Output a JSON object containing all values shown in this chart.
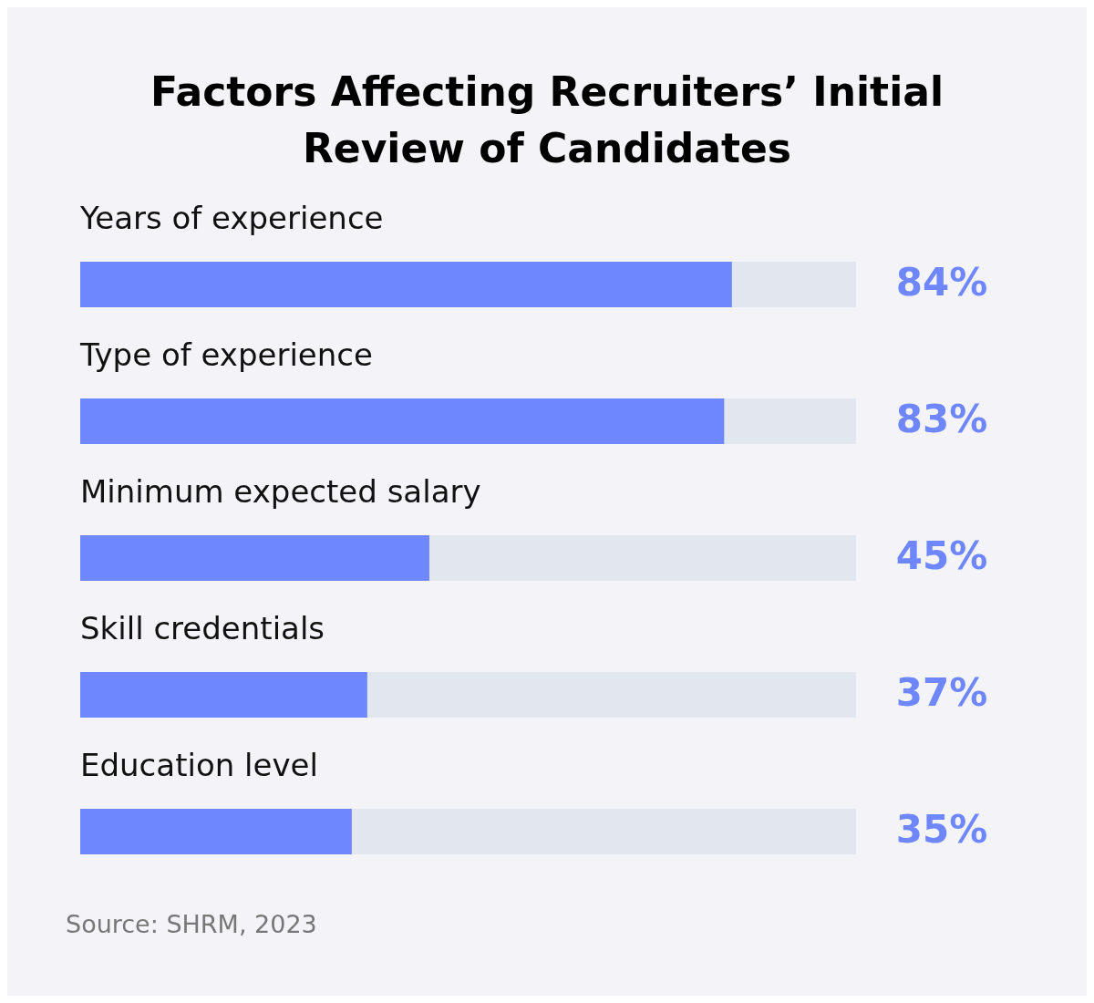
{
  "chart_data": {
    "type": "bar",
    "orientation": "horizontal",
    "title": "Factors Affecting Recruiters’ Initial Review of Candidates",
    "categories": [
      "Years of experience",
      "Type of experience",
      "Minimum expected salary",
      "Skill credentials",
      "Education level"
    ],
    "values": [
      84,
      83,
      45,
      37,
      35
    ],
    "value_labels": [
      "84%",
      "83%",
      "45%",
      "37%",
      "35%"
    ],
    "color": "#6e87fe",
    "xlim": [
      0,
      100
    ],
    "tick_labels": false,
    "annotations": [
      "Source: SHRM, 2023"
    ]
  }
}
